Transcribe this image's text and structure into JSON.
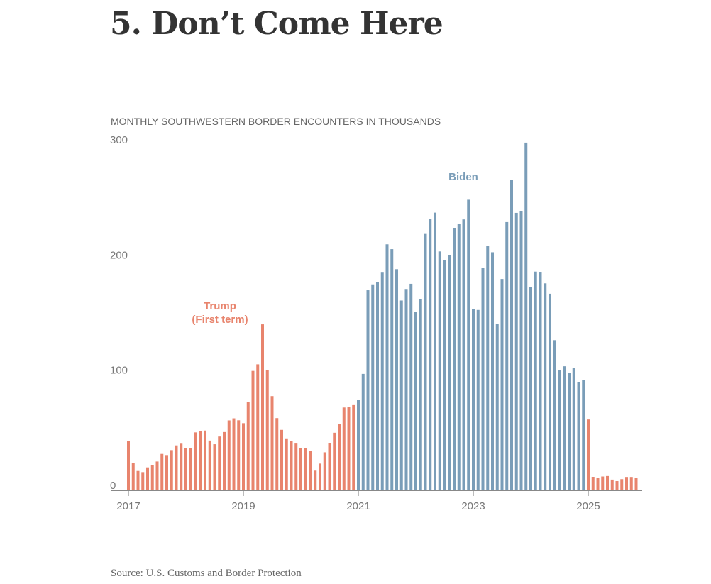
{
  "header": {
    "title": "5. Don’t Come Here"
  },
  "footer": {
    "source": "Source: U.S. Customs and Border Protection"
  },
  "chart_data": {
    "type": "bar",
    "title": "MONTHLY SOUTHWESTERN BORDER ENCOUNTERS IN THOUSANDS",
    "xlabel": "",
    "ylabel": "",
    "ylim": [
      0,
      300
    ],
    "y_ticks": [
      "0",
      "100",
      "200",
      "300"
    ],
    "x_ticks": [
      "2017",
      "2019",
      "2021",
      "2023",
      "2025"
    ],
    "grid": false,
    "start_month": "2017-01",
    "colors": {
      "Trump": "#e8846d",
      "Biden": "#7a9db8"
    },
    "annotations": [
      {
        "text": "Trump",
        "series": "Trump"
      },
      {
        "text": "(First term)",
        "series": "Trump"
      },
      {
        "text": "Biden",
        "series": "Biden"
      }
    ],
    "months": [
      "2017-01",
      "2017-02",
      "2017-03",
      "2017-04",
      "2017-05",
      "2017-06",
      "2017-07",
      "2017-08",
      "2017-09",
      "2017-10",
      "2017-11",
      "2017-12",
      "2018-01",
      "2018-02",
      "2018-03",
      "2018-04",
      "2018-05",
      "2018-06",
      "2018-07",
      "2018-08",
      "2018-09",
      "2018-10",
      "2018-11",
      "2018-12",
      "2019-01",
      "2019-02",
      "2019-03",
      "2019-04",
      "2019-05",
      "2019-06",
      "2019-07",
      "2019-08",
      "2019-09",
      "2019-10",
      "2019-11",
      "2019-12",
      "2020-01",
      "2020-02",
      "2020-03",
      "2020-04",
      "2020-05",
      "2020-06",
      "2020-07",
      "2020-08",
      "2020-09",
      "2020-10",
      "2020-11",
      "2020-12",
      "2021-01",
      "2021-02",
      "2021-03",
      "2021-04",
      "2021-05",
      "2021-06",
      "2021-07",
      "2021-08",
      "2021-09",
      "2021-10",
      "2021-11",
      "2021-12",
      "2022-01",
      "2022-02",
      "2022-03",
      "2022-04",
      "2022-05",
      "2022-06",
      "2022-07",
      "2022-08",
      "2022-09",
      "2022-10",
      "2022-11",
      "2022-12",
      "2023-01",
      "2023-02",
      "2023-03",
      "2023-04",
      "2023-05",
      "2023-06",
      "2023-07",
      "2023-08",
      "2023-09",
      "2023-10",
      "2023-11",
      "2023-12",
      "2024-01",
      "2024-02",
      "2024-03",
      "2024-04",
      "2024-05",
      "2024-06",
      "2024-07",
      "2024-08",
      "2024-09",
      "2024-10",
      "2024-11",
      "2024-12",
      "2025-01",
      "2025-02",
      "2025-03",
      "2025-04",
      "2025-05",
      "2025-06",
      "2025-07",
      "2025-08",
      "2025-09",
      "2025-10",
      "2025-11"
    ],
    "values": [
      42.5,
      23.6,
      16.8,
      15.8,
      19.9,
      22.1,
      25.0,
      31.6,
      30.6,
      34.9,
      39.0,
      40.5,
      36.5,
      36.7,
      50.3,
      51.2,
      51.9,
      43.2,
      40.0,
      46.7,
      50.6,
      60.7,
      62.5,
      60.8,
      58.3,
      76.5,
      103.7,
      109.4,
      144.1,
      104.3,
      81.8,
      62.7,
      52.5,
      45.1,
      42.6,
      40.6,
      36.6,
      36.7,
      34.5,
      17.1,
      23.2,
      33.0,
      40.9,
      50.0,
      57.6,
      71.9,
      72.1,
      74.0,
      78.4,
      101.1,
      173.7,
      178.8,
      180.6,
      189.0,
      213.6,
      209.4,
      192.0,
      164.8,
      174.8,
      179.3,
      154.9,
      166.0,
      222.6,
      235.8,
      241.1,
      207.4,
      200.2,
      204.1,
      227.5,
      231.5,
      235.2,
      252.3,
      157.4,
      156.6,
      193.2,
      211.9,
      206.7,
      144.6,
      183.5,
      232.9,
      269.7,
      240.9,
      242.4,
      301.9,
      176.2,
      189.9,
      189.1,
      179.7,
      170.7,
      130.4,
      104.1,
      107.7,
      101.8,
      106.3,
      94.2,
      96.0,
      61.5,
      11.7,
      11.0,
      12.0,
      12.4,
      9.3,
      8.0,
      9.7,
      11.6,
      11.6,
      11.0
    ],
    "series_by_month": {
      "Trump": [
        "2017-01",
        "2020-12"
      ],
      "Biden": [
        "2021-01",
        "2024-12"
      ],
      "Trump ": [
        "2025-01",
        "2025-11"
      ]
    }
  }
}
